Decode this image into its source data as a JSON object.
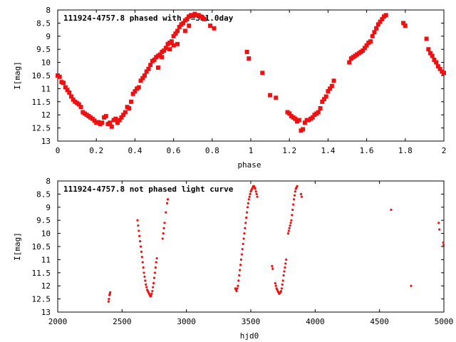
{
  "chart_data": [
    {
      "type": "scatter",
      "title": "111924-4757.8 phased with P=331.0day",
      "xlabel": "phase",
      "ylabel": "I[mag]",
      "xlim": [
        0,
        2
      ],
      "ylim": [
        8,
        13
      ],
      "y_inverted": true,
      "grid": false,
      "marker": "square",
      "marker_color": "#ee1111",
      "x_ticks": [
        0,
        0.2,
        0.4,
        0.6,
        0.8,
        1,
        1.2,
        1.4,
        1.6,
        1.8,
        2
      ],
      "x_tick_labels": [
        "0",
        "0.2",
        "0.4",
        "0.6",
        "0.8",
        "1",
        "1.2",
        "1.4",
        "1.6",
        "1.8",
        "2"
      ],
      "y_ticks": [
        8,
        8.5,
        9,
        9.5,
        10,
        10.5,
        11,
        11.5,
        12,
        12.5,
        13
      ],
      "y_tick_labels": [
        "8",
        "8.5",
        "9",
        "9.5",
        "10",
        "10.5",
        "11",
        "11.5",
        "12",
        "12.5",
        "13"
      ],
      "points": [
        [
          0.0,
          10.5
        ],
        [
          0.01,
          10.55
        ],
        [
          0.02,
          10.75
        ],
        [
          0.03,
          10.78
        ],
        [
          0.04,
          10.95
        ],
        [
          0.05,
          11.05
        ],
        [
          0.06,
          11.15
        ],
        [
          0.07,
          11.3
        ],
        [
          0.08,
          11.42
        ],
        [
          0.09,
          11.5
        ],
        [
          0.1,
          11.55
        ],
        [
          0.11,
          11.6
        ],
        [
          0.12,
          11.7
        ],
        [
          0.13,
          11.9
        ],
        [
          0.14,
          11.95
        ],
        [
          0.15,
          12.0
        ],
        [
          0.16,
          12.05
        ],
        [
          0.17,
          12.1
        ],
        [
          0.18,
          12.15
        ],
        [
          0.19,
          12.22
        ],
        [
          0.2,
          12.3
        ],
        [
          0.21,
          12.28
        ],
        [
          0.22,
          12.35
        ],
        [
          0.23,
          12.3
        ],
        [
          0.24,
          12.1
        ],
        [
          0.25,
          12.05
        ],
        [
          0.26,
          12.35
        ],
        [
          0.27,
          12.3
        ],
        [
          0.28,
          12.45
        ],
        [
          0.29,
          12.2
        ],
        [
          0.3,
          12.15
        ],
        [
          0.31,
          12.3
        ],
        [
          0.32,
          12.2
        ],
        [
          0.33,
          12.1
        ],
        [
          0.34,
          12.0
        ],
        [
          0.35,
          11.9
        ],
        [
          0.36,
          11.7
        ],
        [
          0.37,
          11.75
        ],
        [
          0.38,
          11.5
        ],
        [
          0.39,
          11.2
        ],
        [
          0.4,
          11.1
        ],
        [
          0.41,
          11.0
        ],
        [
          0.42,
          10.95
        ],
        [
          0.43,
          10.7
        ],
        [
          0.44,
          10.6
        ],
        [
          0.45,
          10.5
        ],
        [
          0.46,
          10.35
        ],
        [
          0.47,
          10.25
        ],
        [
          0.48,
          10.1
        ],
        [
          0.49,
          9.95
        ],
        [
          0.5,
          9.9
        ],
        [
          0.51,
          9.8
        ],
        [
          0.52,
          9.75
        ],
        [
          0.53,
          9.7
        ],
        [
          0.54,
          9.6
        ],
        [
          0.55,
          9.55
        ],
        [
          0.56,
          9.45
        ],
        [
          0.57,
          9.3
        ],
        [
          0.58,
          9.25
        ],
        [
          0.59,
          9.2
        ],
        [
          0.6,
          9.0
        ],
        [
          0.61,
          8.9
        ],
        [
          0.62,
          8.8
        ],
        [
          0.63,
          8.65
        ],
        [
          0.64,
          8.55
        ],
        [
          0.65,
          8.5
        ],
        [
          0.66,
          8.4
        ],
        [
          0.67,
          8.35
        ],
        [
          0.68,
          8.25
        ],
        [
          0.69,
          8.2
        ],
        [
          0.7,
          8.2
        ],
        [
          0.71,
          8.15
        ],
        [
          0.72,
          8.2
        ],
        [
          0.73,
          8.2
        ],
        [
          0.74,
          8.25
        ],
        [
          0.75,
          8.3
        ],
        [
          0.76,
          8.35
        ],
        [
          0.79,
          8.6
        ],
        [
          0.81,
          8.7
        ],
        [
          0.52,
          10.2
        ],
        [
          0.54,
          9.8
        ],
        [
          0.58,
          9.5
        ],
        [
          0.6,
          9.35
        ],
        [
          0.62,
          9.3
        ],
        [
          0.66,
          8.8
        ],
        [
          0.68,
          8.6
        ],
        [
          0.98,
          9.6
        ],
        [
          0.99,
          9.85
        ],
        [
          1.06,
          10.4
        ],
        [
          1.1,
          11.25
        ],
        [
          1.13,
          11.35
        ],
        [
          1.19,
          11.9
        ],
        [
          1.2,
          11.95
        ],
        [
          1.21,
          12.05
        ],
        [
          1.22,
          12.1
        ],
        [
          1.23,
          12.15
        ],
        [
          1.24,
          12.25
        ],
        [
          1.25,
          12.2
        ],
        [
          1.26,
          12.6
        ],
        [
          1.27,
          12.55
        ],
        [
          1.28,
          12.3
        ],
        [
          1.29,
          12.2
        ],
        [
          1.3,
          12.2
        ],
        [
          1.31,
          12.15
        ],
        [
          1.32,
          12.1
        ],
        [
          1.33,
          12.0
        ],
        [
          1.34,
          11.95
        ],
        [
          1.35,
          11.9
        ],
        [
          1.36,
          11.75
        ],
        [
          1.37,
          11.5
        ],
        [
          1.38,
          11.4
        ],
        [
          1.39,
          11.3
        ],
        [
          1.4,
          11.1
        ],
        [
          1.41,
          11.0
        ],
        [
          1.42,
          10.9
        ],
        [
          1.43,
          10.7
        ],
        [
          1.51,
          10.0
        ],
        [
          1.52,
          9.85
        ],
        [
          1.53,
          9.8
        ],
        [
          1.54,
          9.75
        ],
        [
          1.55,
          9.7
        ],
        [
          1.56,
          9.65
        ],
        [
          1.57,
          9.6
        ],
        [
          1.58,
          9.55
        ],
        [
          1.59,
          9.45
        ],
        [
          1.6,
          9.35
        ],
        [
          1.61,
          9.25
        ],
        [
          1.62,
          9.2
        ],
        [
          1.63,
          9.0
        ],
        [
          1.64,
          8.85
        ],
        [
          1.65,
          8.7
        ],
        [
          1.66,
          8.55
        ],
        [
          1.67,
          8.45
        ],
        [
          1.68,
          8.35
        ],
        [
          1.69,
          8.25
        ],
        [
          1.7,
          8.2
        ],
        [
          1.79,
          8.5
        ],
        [
          1.8,
          8.6
        ],
        [
          1.91,
          9.1
        ],
        [
          1.92,
          9.5
        ],
        [
          1.93,
          9.65
        ],
        [
          1.94,
          9.75
        ],
        [
          1.95,
          9.9
        ],
        [
          1.96,
          10.0
        ],
        [
          1.97,
          10.15
        ],
        [
          1.98,
          10.25
        ],
        [
          1.99,
          10.35
        ],
        [
          2.0,
          10.4
        ]
      ]
    },
    {
      "type": "scatter",
      "title": "111924-4757.8 not phased light curve",
      "xlabel": "hjd0",
      "ylabel": "I[mag]",
      "xlim": [
        2000,
        5000
      ],
      "ylim": [
        8,
        13
      ],
      "y_inverted": true,
      "grid": false,
      "marker": "dot",
      "marker_color": "#ee1111",
      "x_ticks": [
        2000,
        2500,
        3000,
        3500,
        4000,
        4500,
        5000
      ],
      "x_tick_labels": [
        "2000",
        "2500",
        "3000",
        "3500",
        "4000",
        "4500",
        "5000"
      ],
      "y_ticks": [
        8,
        8.5,
        9,
        9.5,
        10,
        10.5,
        11,
        11.5,
        12,
        12.5,
        13
      ],
      "y_tick_labels": [
        "8",
        "8.5",
        "9",
        "9.5",
        "10",
        "10.5",
        "11",
        "11.5",
        "12",
        "12.5",
        "13"
      ],
      "points": [
        [
          2395,
          12.6
        ],
        [
          2398,
          12.5
        ],
        [
          2402,
          12.35
        ],
        [
          2405,
          12.3
        ],
        [
          2408,
          12.25
        ],
        [
          2620,
          9.5
        ],
        [
          2625,
          9.7
        ],
        [
          2630,
          9.9
        ],
        [
          2635,
          10.1
        ],
        [
          2640,
          10.3
        ],
        [
          2645,
          10.5
        ],
        [
          2650,
          10.7
        ],
        [
          2655,
          10.9
        ],
        [
          2660,
          11.1
        ],
        [
          2665,
          11.3
        ],
        [
          2670,
          11.5
        ],
        [
          2675,
          11.65
        ],
        [
          2680,
          11.8
        ],
        [
          2685,
          11.95
        ],
        [
          2690,
          12.05
        ],
        [
          2695,
          12.15
        ],
        [
          2700,
          12.2
        ],
        [
          2705,
          12.25
        ],
        [
          2710,
          12.3
        ],
        [
          2715,
          12.35
        ],
        [
          2720,
          12.4
        ],
        [
          2725,
          12.38
        ],
        [
          2730,
          12.3
        ],
        [
          2735,
          12.2
        ],
        [
          2740,
          12.05
        ],
        [
          2745,
          11.9
        ],
        [
          2750,
          11.7
        ],
        [
          2755,
          11.5
        ],
        [
          2760,
          11.3
        ],
        [
          2765,
          11.1
        ],
        [
          2770,
          10.95
        ],
        [
          2815,
          10.2
        ],
        [
          2820,
          10.0
        ],
        [
          2825,
          9.8
        ],
        [
          2830,
          9.6
        ],
        [
          2840,
          9.2
        ],
        [
          2850,
          8.85
        ],
        [
          2855,
          8.7
        ],
        [
          3380,
          12.1
        ],
        [
          3385,
          12.15
        ],
        [
          3390,
          12.2
        ],
        [
          3395,
          12.1
        ],
        [
          3400,
          12.0
        ],
        [
          3405,
          11.8
        ],
        [
          3410,
          11.6
        ],
        [
          3415,
          11.4
        ],
        [
          3420,
          11.2
        ],
        [
          3425,
          11.0
        ],
        [
          3430,
          10.8
        ],
        [
          3435,
          10.6
        ],
        [
          3440,
          10.4
        ],
        [
          3445,
          10.2
        ],
        [
          3450,
          10.0
        ],
        [
          3455,
          9.8
        ],
        [
          3460,
          9.6
        ],
        [
          3465,
          9.4
        ],
        [
          3470,
          9.2
        ],
        [
          3475,
          9.0
        ],
        [
          3480,
          8.85
        ],
        [
          3485,
          8.7
        ],
        [
          3490,
          8.6
        ],
        [
          3495,
          8.5
        ],
        [
          3500,
          8.4
        ],
        [
          3505,
          8.35
        ],
        [
          3510,
          8.3
        ],
        [
          3515,
          8.25
        ],
        [
          3520,
          8.2
        ],
        [
          3525,
          8.2
        ],
        [
          3530,
          8.25
        ],
        [
          3535,
          8.3
        ],
        [
          3540,
          8.4
        ],
        [
          3545,
          8.5
        ],
        [
          3550,
          8.6
        ],
        [
          3665,
          11.25
        ],
        [
          3670,
          11.35
        ],
        [
          3690,
          11.9
        ],
        [
          3695,
          12.0
        ],
        [
          3700,
          12.1
        ],
        [
          3705,
          12.15
        ],
        [
          3710,
          12.2
        ],
        [
          3715,
          12.25
        ],
        [
          3720,
          12.3
        ],
        [
          3725,
          12.28
        ],
        [
          3730,
          12.25
        ],
        [
          3735,
          12.2
        ],
        [
          3740,
          12.1
        ],
        [
          3745,
          11.95
        ],
        [
          3750,
          11.8
        ],
        [
          3755,
          11.6
        ],
        [
          3760,
          11.45
        ],
        [
          3765,
          11.3
        ],
        [
          3770,
          11.15
        ],
        [
          3775,
          11.0
        ],
        [
          3790,
          10.0
        ],
        [
          3795,
          9.9
        ],
        [
          3800,
          9.8
        ],
        [
          3805,
          9.7
        ],
        [
          3810,
          9.6
        ],
        [
          3815,
          9.5
        ],
        [
          3820,
          9.3
        ],
        [
          3825,
          9.1
        ],
        [
          3830,
          8.9
        ],
        [
          3835,
          8.7
        ],
        [
          3840,
          8.55
        ],
        [
          3845,
          8.4
        ],
        [
          3850,
          8.3
        ],
        [
          3855,
          8.25
        ],
        [
          3860,
          8.2
        ],
        [
          3890,
          8.5
        ],
        [
          3895,
          8.6
        ],
        [
          4590,
          9.1
        ],
        [
          4745,
          12.0
        ],
        [
          4960,
          9.6
        ],
        [
          4965,
          9.85
        ],
        [
          4995,
          10.35
        ],
        [
          4998,
          10.45
        ]
      ]
    }
  ]
}
